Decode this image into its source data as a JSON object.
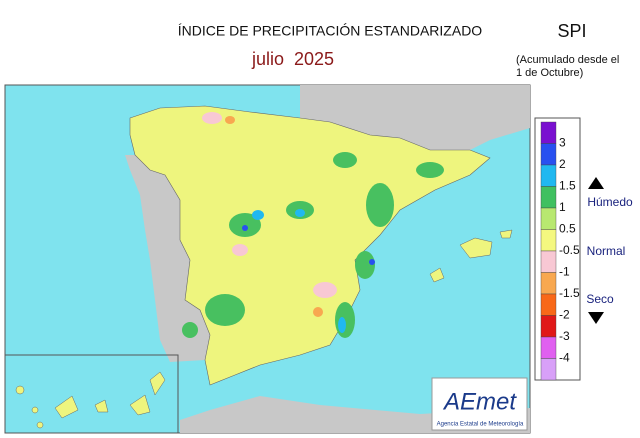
{
  "header": {
    "title": "ÍNDICE DE PRECIPITACIÓN ESTANDARIZADO",
    "period": "julio  2025",
    "index": "SPI",
    "note_line1": "(Acumulado desde el",
    "note_line2": "1 de Octubre)"
  },
  "legend": {
    "labels": [
      3,
      2,
      1.5,
      1,
      0.5,
      -0.5,
      -1,
      -1.5,
      -2,
      -3,
      -4
    ],
    "colors": [
      "#7a10d0",
      "#2850f0",
      "#20b8f0",
      "#40c060",
      "#b8e870",
      "#f4f880",
      "#f8c8d4",
      "#f8a850",
      "#f86818",
      "#e01818",
      "#e060f0",
      "#d8a0f8"
    ],
    "wet": "Húmedo",
    "normal": "Normal",
    "dry": "Seco"
  },
  "logo": {
    "name": "AEmet",
    "subtitle": "Agencia Estatal de Meteorología"
  }
}
